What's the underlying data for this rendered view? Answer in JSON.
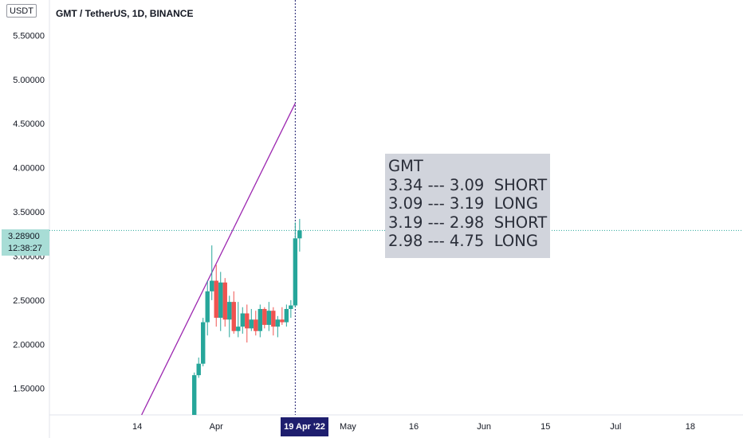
{
  "header": {
    "currency": "USDT",
    "title": "GMT / TetherUS, 1D, BINANCE"
  },
  "price_badge": {
    "price": "3.28900",
    "countdown": "12:38:27"
  },
  "crosshair": {
    "date_label": "19 Apr '22"
  },
  "note": {
    "lines": [
      "GMT",
      "3.34 --- 3.09  SHORT",
      "3.09 --- 3.19  LONG",
      "3.19 --- 2.98  SHORT",
      "2.98 --- 4.75  LONG"
    ]
  },
  "colors": {
    "up": "#26a69a",
    "down": "#ef5350",
    "trendline": "#9c27b0",
    "crosshair": "#1e1e6e",
    "price_line": "#26a69a"
  },
  "chart_data": {
    "type": "candlestick",
    "title": "GMT / TetherUS, 1D, BINANCE",
    "y_ticks": [
      "1.50000",
      "2.00000",
      "2.50000",
      "3.00000",
      "3.50000",
      "4.00000",
      "4.50000",
      "5.00000",
      "5.50000"
    ],
    "y_tick_values": [
      1.5,
      2.0,
      2.5,
      3.0,
      3.5,
      4.0,
      4.5,
      5.0,
      5.5
    ],
    "ylim": [
      1.2,
      5.9
    ],
    "x_ticks": [
      "14",
      "Apr",
      "May",
      "16",
      "Jun",
      "15",
      "Jul",
      "18"
    ],
    "x_tick_dates": [
      "2022-03-14",
      "2022-04-01",
      "2022-05-01",
      "2022-05-16",
      "2022-06-01",
      "2022-06-15",
      "2022-07-01",
      "2022-07-18"
    ],
    "xlim": [
      "2022-02-22",
      "2022-07-30"
    ],
    "last_price": 3.289,
    "crosshair_date": "2022-04-19",
    "trendline": {
      "x": [
        "2022-03-15",
        "2022-04-19"
      ],
      "y": [
        1.2,
        4.73
      ]
    },
    "candles": [
      {
        "date": "2022-03-27",
        "open": 1.2,
        "high": 1.68,
        "low": 1.2,
        "close": 1.65
      },
      {
        "date": "2022-03-28",
        "open": 1.65,
        "high": 1.85,
        "low": 1.62,
        "close": 1.78
      },
      {
        "date": "2022-03-29",
        "open": 1.78,
        "high": 2.3,
        "low": 1.75,
        "close": 2.25
      },
      {
        "date": "2022-03-30",
        "open": 2.25,
        "high": 2.72,
        "low": 2.1,
        "close": 2.6
      },
      {
        "date": "2022-03-31",
        "open": 2.6,
        "high": 3.12,
        "low": 2.5,
        "close": 2.72
      },
      {
        "date": "2022-04-01",
        "open": 2.72,
        "high": 2.9,
        "low": 2.2,
        "close": 2.3
      },
      {
        "date": "2022-04-02",
        "open": 2.3,
        "high": 2.82,
        "low": 2.15,
        "close": 2.7
      },
      {
        "date": "2022-04-03",
        "open": 2.7,
        "high": 2.75,
        "low": 2.2,
        "close": 2.28
      },
      {
        "date": "2022-04-04",
        "open": 2.28,
        "high": 2.55,
        "low": 2.08,
        "close": 2.48
      },
      {
        "date": "2022-04-05",
        "open": 2.48,
        "high": 2.6,
        "low": 2.12,
        "close": 2.15
      },
      {
        "date": "2022-04-06",
        "open": 2.15,
        "high": 2.48,
        "low": 2.08,
        "close": 2.2
      },
      {
        "date": "2022-04-07",
        "open": 2.2,
        "high": 2.42,
        "low": 2.12,
        "close": 2.35
      },
      {
        "date": "2022-04-08",
        "open": 2.35,
        "high": 2.45,
        "low": 2.02,
        "close": 2.18
      },
      {
        "date": "2022-04-09",
        "open": 2.18,
        "high": 2.4,
        "low": 2.15,
        "close": 2.28
      },
      {
        "date": "2022-04-10",
        "open": 2.28,
        "high": 2.38,
        "low": 2.1,
        "close": 2.15
      },
      {
        "date": "2022-04-11",
        "open": 2.15,
        "high": 2.45,
        "low": 2.08,
        "close": 2.4
      },
      {
        "date": "2022-04-12",
        "open": 2.4,
        "high": 2.42,
        "low": 2.18,
        "close": 2.22
      },
      {
        "date": "2022-04-13",
        "open": 2.22,
        "high": 2.48,
        "low": 2.15,
        "close": 2.38
      },
      {
        "date": "2022-04-14",
        "open": 2.38,
        "high": 2.42,
        "low": 2.1,
        "close": 2.2
      },
      {
        "date": "2022-04-15",
        "open": 2.2,
        "high": 2.32,
        "low": 2.08,
        "close": 2.28
      },
      {
        "date": "2022-04-16",
        "open": 2.28,
        "high": 2.42,
        "low": 2.22,
        "close": 2.25
      },
      {
        "date": "2022-04-17",
        "open": 2.25,
        "high": 2.45,
        "low": 2.2,
        "close": 2.4
      },
      {
        "date": "2022-04-18",
        "open": 2.4,
        "high": 2.5,
        "low": 2.3,
        "close": 2.44
      },
      {
        "date": "2022-04-19",
        "open": 2.44,
        "high": 3.38,
        "low": 2.42,
        "close": 3.2
      },
      {
        "date": "2022-04-20",
        "open": 3.2,
        "high": 3.42,
        "low": 3.05,
        "close": 3.29
      }
    ]
  }
}
